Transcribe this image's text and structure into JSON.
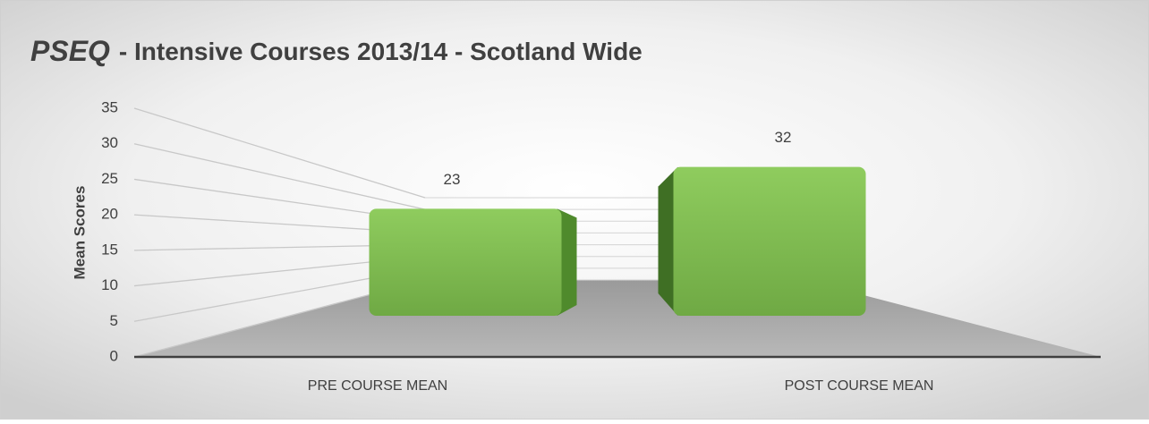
{
  "chart_data": {
    "type": "bar3d",
    "title": [
      "PSEQ",
      "- Intensive Courses 2013/14 - Scotland Wide"
    ],
    "y_label": "Mean Scores",
    "categories": [
      "PRE COURSE MEAN",
      "POST COURSE MEAN"
    ],
    "values": [
      23,
      32
    ],
    "color": "#7cb94c",
    "ylim": [
      0,
      35
    ],
    "yticks": [
      0,
      5,
      10,
      15,
      20,
      25,
      30,
      35
    ],
    "grid": true
  }
}
